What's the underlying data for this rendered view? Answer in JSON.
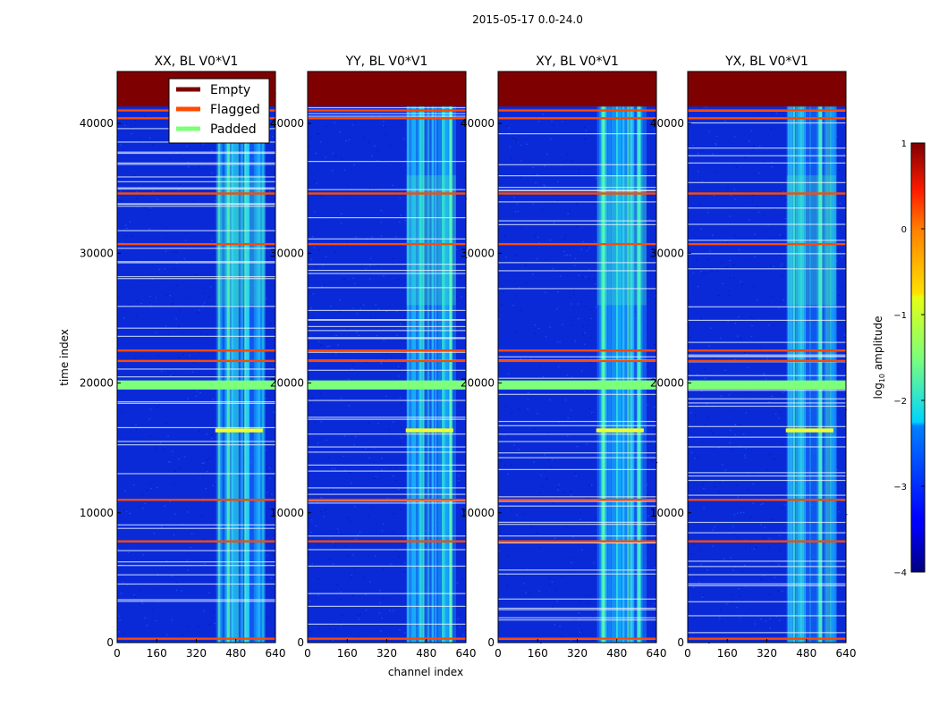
{
  "figure": {
    "suptitle": "2015-05-17 0.0-24.0",
    "xlabel": "channel index",
    "ylabel": "time index"
  },
  "legend": {
    "location": "upper-right of first panel",
    "entries": [
      {
        "label": "Empty",
        "color": "#7f0000"
      },
      {
        "label": "Flagged",
        "color": "#ff4a00"
      },
      {
        "label": "Padded",
        "color": "#7dff7a"
      }
    ]
  },
  "colorbar": {
    "label": "log10 amplitude",
    "label_main": "log",
    "label_sub": "10",
    "label_rest": " amplitude",
    "range": [
      -4,
      1
    ],
    "ticks": [
      1,
      0,
      -1,
      -2,
      -3,
      -4
    ],
    "tick_labels": [
      "1",
      "0",
      "−1",
      "−2",
      "−3",
      "−4"
    ]
  },
  "colors": {
    "empty": "#7f0000",
    "flagged": "#ff4a00",
    "padded": "#7dff7a",
    "background_low": "#0a2ad8",
    "background_mid": "#1450ff"
  },
  "chart_data": [
    {
      "type": "heatmap",
      "title": "XX, BL V0*V1",
      "xlabel": "channel index",
      "ylabel": "time index",
      "xlim": [
        0,
        640
      ],
      "ylim": [
        0,
        44000
      ],
      "xticks": [
        "0",
        "160",
        "320",
        "480",
        "640"
      ],
      "yticks": [
        "0",
        "10000",
        "20000",
        "30000",
        "40000"
      ],
      "empty_region": [
        41300,
        44000
      ],
      "bright_channels": [
        400,
        600
      ],
      "padded_band": [
        19500,
        20200
      ],
      "flagged_rows": [
        300,
        7800,
        11000,
        21700,
        22500,
        30700,
        34600,
        40400,
        41000
      ],
      "bright_row": [
        16200,
        16500
      ],
      "zrange": [
        -4,
        1
      ],
      "colorscale": "jet"
    },
    {
      "type": "heatmap",
      "title": "YY, BL V0*V1",
      "xlabel": "channel index",
      "ylabel": "time index",
      "xlim": [
        0,
        640
      ],
      "ylim": [
        0,
        44000
      ],
      "xticks": [
        "0",
        "160",
        "320",
        "480",
        "640"
      ],
      "yticks": [
        "0",
        "10000",
        "20000",
        "30000",
        "40000"
      ],
      "empty_region": [
        41300,
        44000
      ],
      "bright_channels": [
        400,
        600
      ],
      "padded_band": [
        19500,
        20200
      ],
      "flagged_rows": [
        300,
        7800,
        11000,
        21700,
        22500,
        30700,
        34600,
        40400,
        41000
      ],
      "bright_row": [
        16200,
        16500
      ],
      "zrange": [
        -4,
        1
      ],
      "colorscale": "jet"
    },
    {
      "type": "heatmap",
      "title": "XY, BL V0*V1",
      "xlabel": "channel index",
      "ylabel": "time index",
      "xlim": [
        0,
        640
      ],
      "ylim": [
        0,
        44000
      ],
      "xticks": [
        "0",
        "160",
        "320",
        "480",
        "640"
      ],
      "yticks": [
        "0",
        "10000",
        "20000",
        "30000",
        "40000"
      ],
      "empty_region": [
        41300,
        44000
      ],
      "bright_channels": [
        400,
        600
      ],
      "padded_band": [
        19500,
        20200
      ],
      "flagged_rows": [
        300,
        7800,
        11000,
        21700,
        22500,
        30700,
        34600,
        40400,
        41000
      ],
      "bright_row": [
        16200,
        16500
      ],
      "zrange": [
        -4,
        1
      ],
      "colorscale": "jet"
    },
    {
      "type": "heatmap",
      "title": "YX, BL V0*V1",
      "xlabel": "channel index",
      "ylabel": "time index",
      "xlim": [
        0,
        640
      ],
      "ylim": [
        0,
        44000
      ],
      "xticks": [
        "0",
        "160",
        "320",
        "480",
        "640"
      ],
      "yticks": [
        "0",
        "10000",
        "20000",
        "30000",
        "40000"
      ],
      "empty_region": [
        41300,
        44000
      ],
      "bright_channels": [
        400,
        600
      ],
      "padded_band": [
        19500,
        20200
      ],
      "flagged_rows": [
        300,
        7800,
        11000,
        21700,
        22500,
        30700,
        34600,
        40400,
        41000
      ],
      "bright_row": [
        16200,
        16500
      ],
      "zrange": [
        -4,
        1
      ],
      "colorscale": "jet"
    }
  ]
}
